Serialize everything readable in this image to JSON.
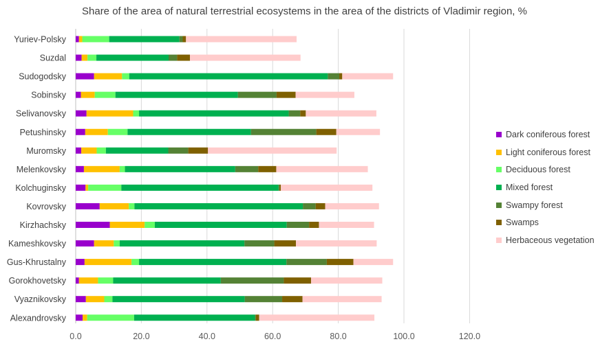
{
  "chart_data": {
    "type": "bar",
    "orientation": "horizontal",
    "stacked": true,
    "title": "Share of the area of natural terrestrial ecosystems in the area of the districts of Vladimir region, %",
    "xlim": [
      0,
      120
    ],
    "xticks": [
      "0.0",
      "20.0",
      "40.0",
      "60.0",
      "80.0",
      "100.0",
      "120.0"
    ],
    "xtick_values": [
      0,
      20,
      40,
      60,
      80,
      100,
      120
    ],
    "grid": "vertical",
    "legend_position": "right",
    "categories": [
      "Yuriev-Polsky",
      "Suzdal",
      "Sudogodsky",
      "Sobinsky",
      "Selivanovsky",
      "Petushinsky",
      "Muromsky",
      "Melenkovsky",
      "Kolchuginsky",
      "Kovrovsky",
      "Kirzhachsky",
      "Kameshkovsky",
      "Gus-Khrustalny",
      "Gorokhovetsky",
      "Vyaznikovsky",
      "Alexandrovsky"
    ],
    "series": [
      {
        "name": "Dark coniferous forest",
        "color": "#9900CC",
        "values": [
          1.0,
          1.8,
          5.6,
          1.6,
          3.3,
          2.9,
          1.7,
          2.5,
          3.0,
          7.3,
          10.4,
          5.6,
          2.7,
          1.0,
          3.1,
          2.1
        ]
      },
      {
        "name": "Light coniferous forest",
        "color": "#FFC000",
        "values": [
          1.0,
          1.8,
          8.5,
          4.2,
          14.2,
          6.9,
          4.7,
          10.9,
          0.8,
          8.9,
          10.6,
          6.0,
          14.3,
          5.8,
          5.6,
          1.4
        ]
      },
      {
        "name": "Deciduous forest",
        "color": "#66FF66",
        "values": [
          8.2,
          2.7,
          2.2,
          6.3,
          1.8,
          6.0,
          2.8,
          1.6,
          10.1,
          1.7,
          3.1,
          1.8,
          2.3,
          4.6,
          2.5,
          14.3
        ]
      },
      {
        "name": "Mixed forest",
        "color": "#00B050",
        "values": [
          21.4,
          22.0,
          60.5,
          37.3,
          45.6,
          37.6,
          19.0,
          33.6,
          47.9,
          51.3,
          40.2,
          38.0,
          44.9,
          32.8,
          40.3,
          36.8
        ]
      },
      {
        "name": "Swampy forest",
        "color": "#548235",
        "values": [
          1.0,
          2.6,
          3.5,
          11.8,
          3.5,
          19.9,
          6.1,
          7.0,
          0.3,
          3.9,
          6.8,
          9.1,
          12.3,
          19.2,
          11.4,
          0.3
        ]
      },
      {
        "name": "Swamps",
        "color": "#7F6000",
        "values": [
          1.0,
          3.9,
          0.9,
          5.8,
          1.7,
          6.1,
          6.0,
          5.5,
          0.4,
          2.9,
          3.0,
          6.6,
          8.1,
          8.3,
          6.2,
          1.0
        ]
      },
      {
        "name": "Herbaceous vegetation",
        "color": "#FFCCCC",
        "values": [
          33.7,
          33.7,
          15.5,
          17.9,
          21.5,
          13.3,
          39.2,
          27.9,
          27.9,
          16.4,
          16.8,
          24.6,
          12.1,
          21.7,
          24.1,
          35.1
        ]
      }
    ]
  }
}
